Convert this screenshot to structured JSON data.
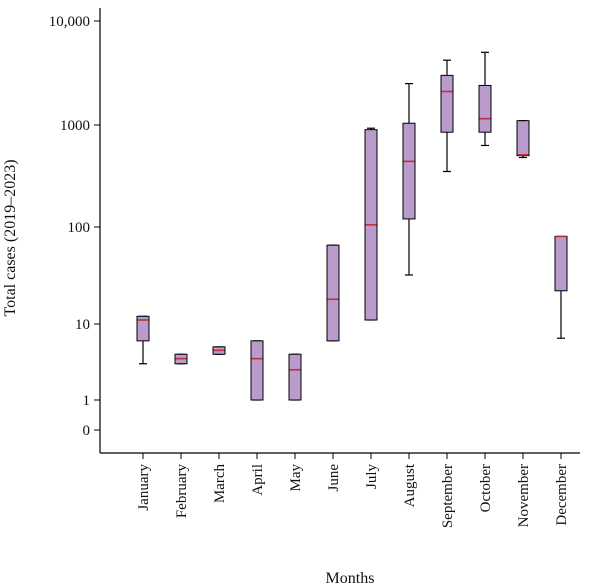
{
  "chart_data": {
    "type": "box",
    "title": "",
    "xlabel": "Months",
    "ylabel": "Total cases (2019–2023)",
    "yscale": "log (0 shown at bottom)",
    "y_ticks": [
      {
        "label": "0",
        "value": 0
      },
      {
        "label": "1",
        "value": 1
      },
      {
        "label": "10",
        "value": 10
      },
      {
        "label": "100",
        "value": 100
      },
      {
        "label": "1000",
        "value": 1000
      },
      {
        "label": "10,000",
        "value": 10000
      }
    ],
    "grid": false,
    "legend": "none",
    "box_fill": "#b99bcc",
    "median_color": "#c0313a",
    "categories": [
      "January",
      "February",
      "March",
      "April",
      "May",
      "June",
      "July",
      "August",
      "September",
      "October",
      "November",
      "December"
    ],
    "boxes": [
      {
        "month": "January",
        "min": 3,
        "q1": 6,
        "median": 11,
        "q3": 12,
        "max": 12
      },
      {
        "month": "February",
        "min": 3,
        "q1": 3,
        "median": 3.5,
        "q3": 4,
        "max": 4
      },
      {
        "month": "March",
        "min": 4,
        "q1": 4,
        "median": 4.5,
        "q3": 5,
        "max": 5
      },
      {
        "month": "April",
        "min": 1,
        "q1": 1,
        "median": 3.5,
        "q3": 6,
        "max": 6
      },
      {
        "month": "May",
        "min": 1,
        "q1": 1,
        "median": 2.5,
        "q3": 4,
        "max": 4
      },
      {
        "month": "June",
        "min": 6,
        "q1": 6,
        "median": 18,
        "q3": 65,
        "max": 65
      },
      {
        "month": "July",
        "min": 11,
        "q1": 11,
        "median": 105,
        "q3": 900,
        "max": 930
      },
      {
        "month": "August",
        "min": 32,
        "q1": 120,
        "median": 440,
        "q3": 1040,
        "max": 2500
      },
      {
        "month": "September",
        "min": 350,
        "q1": 850,
        "median": 2100,
        "q3": 3000,
        "max": 4200
      },
      {
        "month": "October",
        "min": 630,
        "q1": 850,
        "median": 1150,
        "q3": 2400,
        "max": 5000
      },
      {
        "month": "November",
        "min": 480,
        "q1": 500,
        "median": 510,
        "q3": 1100,
        "max": 1100
      },
      {
        "month": "December",
        "min": 6.5,
        "q1": 22,
        "median": 80,
        "q3": 80,
        "max": 80
      }
    ]
  }
}
